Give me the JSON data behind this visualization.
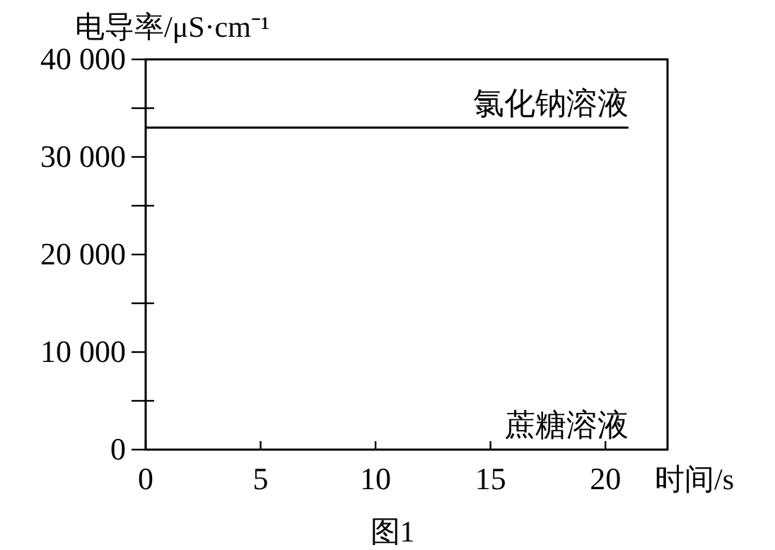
{
  "chart_data": {
    "type": "line",
    "ylabel": "电导率/μS·cm⁻¹",
    "xlabel": "时间/s",
    "annotations": [
      {
        "text": "氯化钠溶液",
        "x": 21,
        "y": 33000
      },
      "蔗糖溶液",
      "图1"
    ],
    "xlim": [
      0,
      22.7
    ],
    "xticks": [
      0,
      5,
      10,
      15,
      20
    ],
    "ylim": [
      0,
      40000
    ],
    "yticks": [
      {
        "value": 0,
        "label": "0"
      },
      {
        "value": 5000,
        "label": null
      },
      {
        "value": 10000,
        "label": "10 000"
      },
      {
        "value": 15000,
        "label": null
      },
      {
        "value": 20000,
        "label": "20 000"
      },
      {
        "value": 25000,
        "label": null
      },
      {
        "value": 30000,
        "label": "30 000"
      },
      {
        "value": 35000,
        "label": null
      },
      {
        "value": 40000,
        "label": "40 000"
      }
    ],
    "series": [
      {
        "color": "#000000",
        "x": [
          0,
          21
        ],
        "values": [
          33000,
          33000
        ]
      }
    ],
    "grid": false,
    "marker": "none",
    "line_style": "solid"
  }
}
